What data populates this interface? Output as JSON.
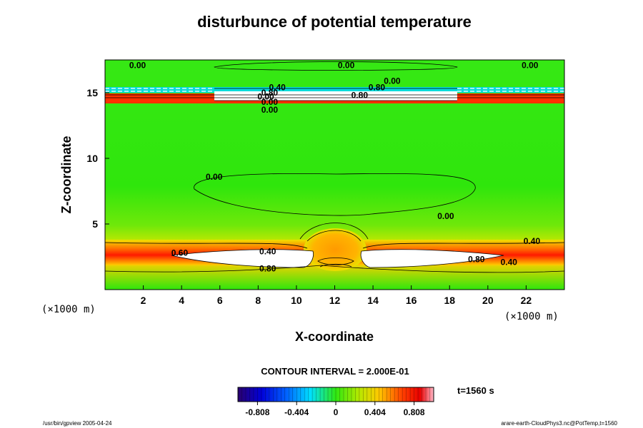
{
  "chart_data": {
    "type": "heatmap",
    "title": "disturbunce of potential temperature",
    "xlabel": "X-coordinate",
    "ylabel": "Z-coordinate",
    "x_unit": "(×1000 m)",
    "y_unit": "(×1000 m)",
    "xlim": [
      0,
      24
    ],
    "ylim": [
      0,
      17.5
    ],
    "x_ticks": [
      2,
      4,
      6,
      8,
      10,
      12,
      14,
      16,
      18,
      20,
      22
    ],
    "y_ticks": [
      5,
      10,
      15
    ],
    "contour_interval_text": "CONTOUR INTERVAL = 2.000E-01",
    "time_text": "t=1560 s",
    "colorbar": {
      "range": [
        -1.01,
        1.01
      ],
      "tick_values": [
        -0.808,
        -0.404,
        0,
        0.404,
        0.808
      ],
      "tick_labels": [
        "-0.808",
        "-0.404",
        "0",
        "0.404",
        "0.808"
      ]
    },
    "contour_labels": [
      {
        "text": "0.00",
        "x": 1.7,
        "z": 17.1
      },
      {
        "text": "0.00",
        "x": 12.6,
        "z": 17.1
      },
      {
        "text": "0.00",
        "x": 22.2,
        "z": 17.1
      },
      {
        "text": "0.00",
        "x": 15.0,
        "z": 15.9
      },
      {
        "text": "0.80",
        "x": 14.2,
        "z": 15.4
      },
      {
        "text": "0.40",
        "x": 9.0,
        "z": 15.4
      },
      {
        "text": "0.80",
        "x": 8.6,
        "z": 15.0
      },
      {
        "text": "0.00",
        "x": 8.4,
        "z": 14.7
      },
      {
        "text": "0.00",
        "x": 8.6,
        "z": 14.3
      },
      {
        "text": "0.00",
        "x": 8.6,
        "z": 13.7
      },
      {
        "text": "0.80",
        "x": 13.3,
        "z": 14.8
      },
      {
        "text": "0.00",
        "x": 5.7,
        "z": 8.6
      },
      {
        "text": "0.00",
        "x": 17.8,
        "z": 5.6
      },
      {
        "text": "0.40",
        "x": 22.3,
        "z": 3.7
      },
      {
        "text": "0.60",
        "x": 3.9,
        "z": 2.8
      },
      {
        "text": "0.40",
        "x": 8.5,
        "z": 2.9
      },
      {
        "text": "0.80",
        "x": 8.5,
        "z": 1.6
      },
      {
        "text": "0.80",
        "x": 19.4,
        "z": 2.3
      },
      {
        "text": "0.40",
        "x": 21.1,
        "z": 2.1
      }
    ]
  },
  "footer": {
    "left": "/usr/bin/gpview 2005-04-24",
    "right": "arare-earth-CloudPhys3.nc@PotTemp,t=1560"
  },
  "colors": {
    "background_field": "#2ee60a",
    "warm_band": "#ff2a00",
    "cold_band": "#00d8ff",
    "saturated": "#ffffff",
    "contour_line": "#000000"
  }
}
